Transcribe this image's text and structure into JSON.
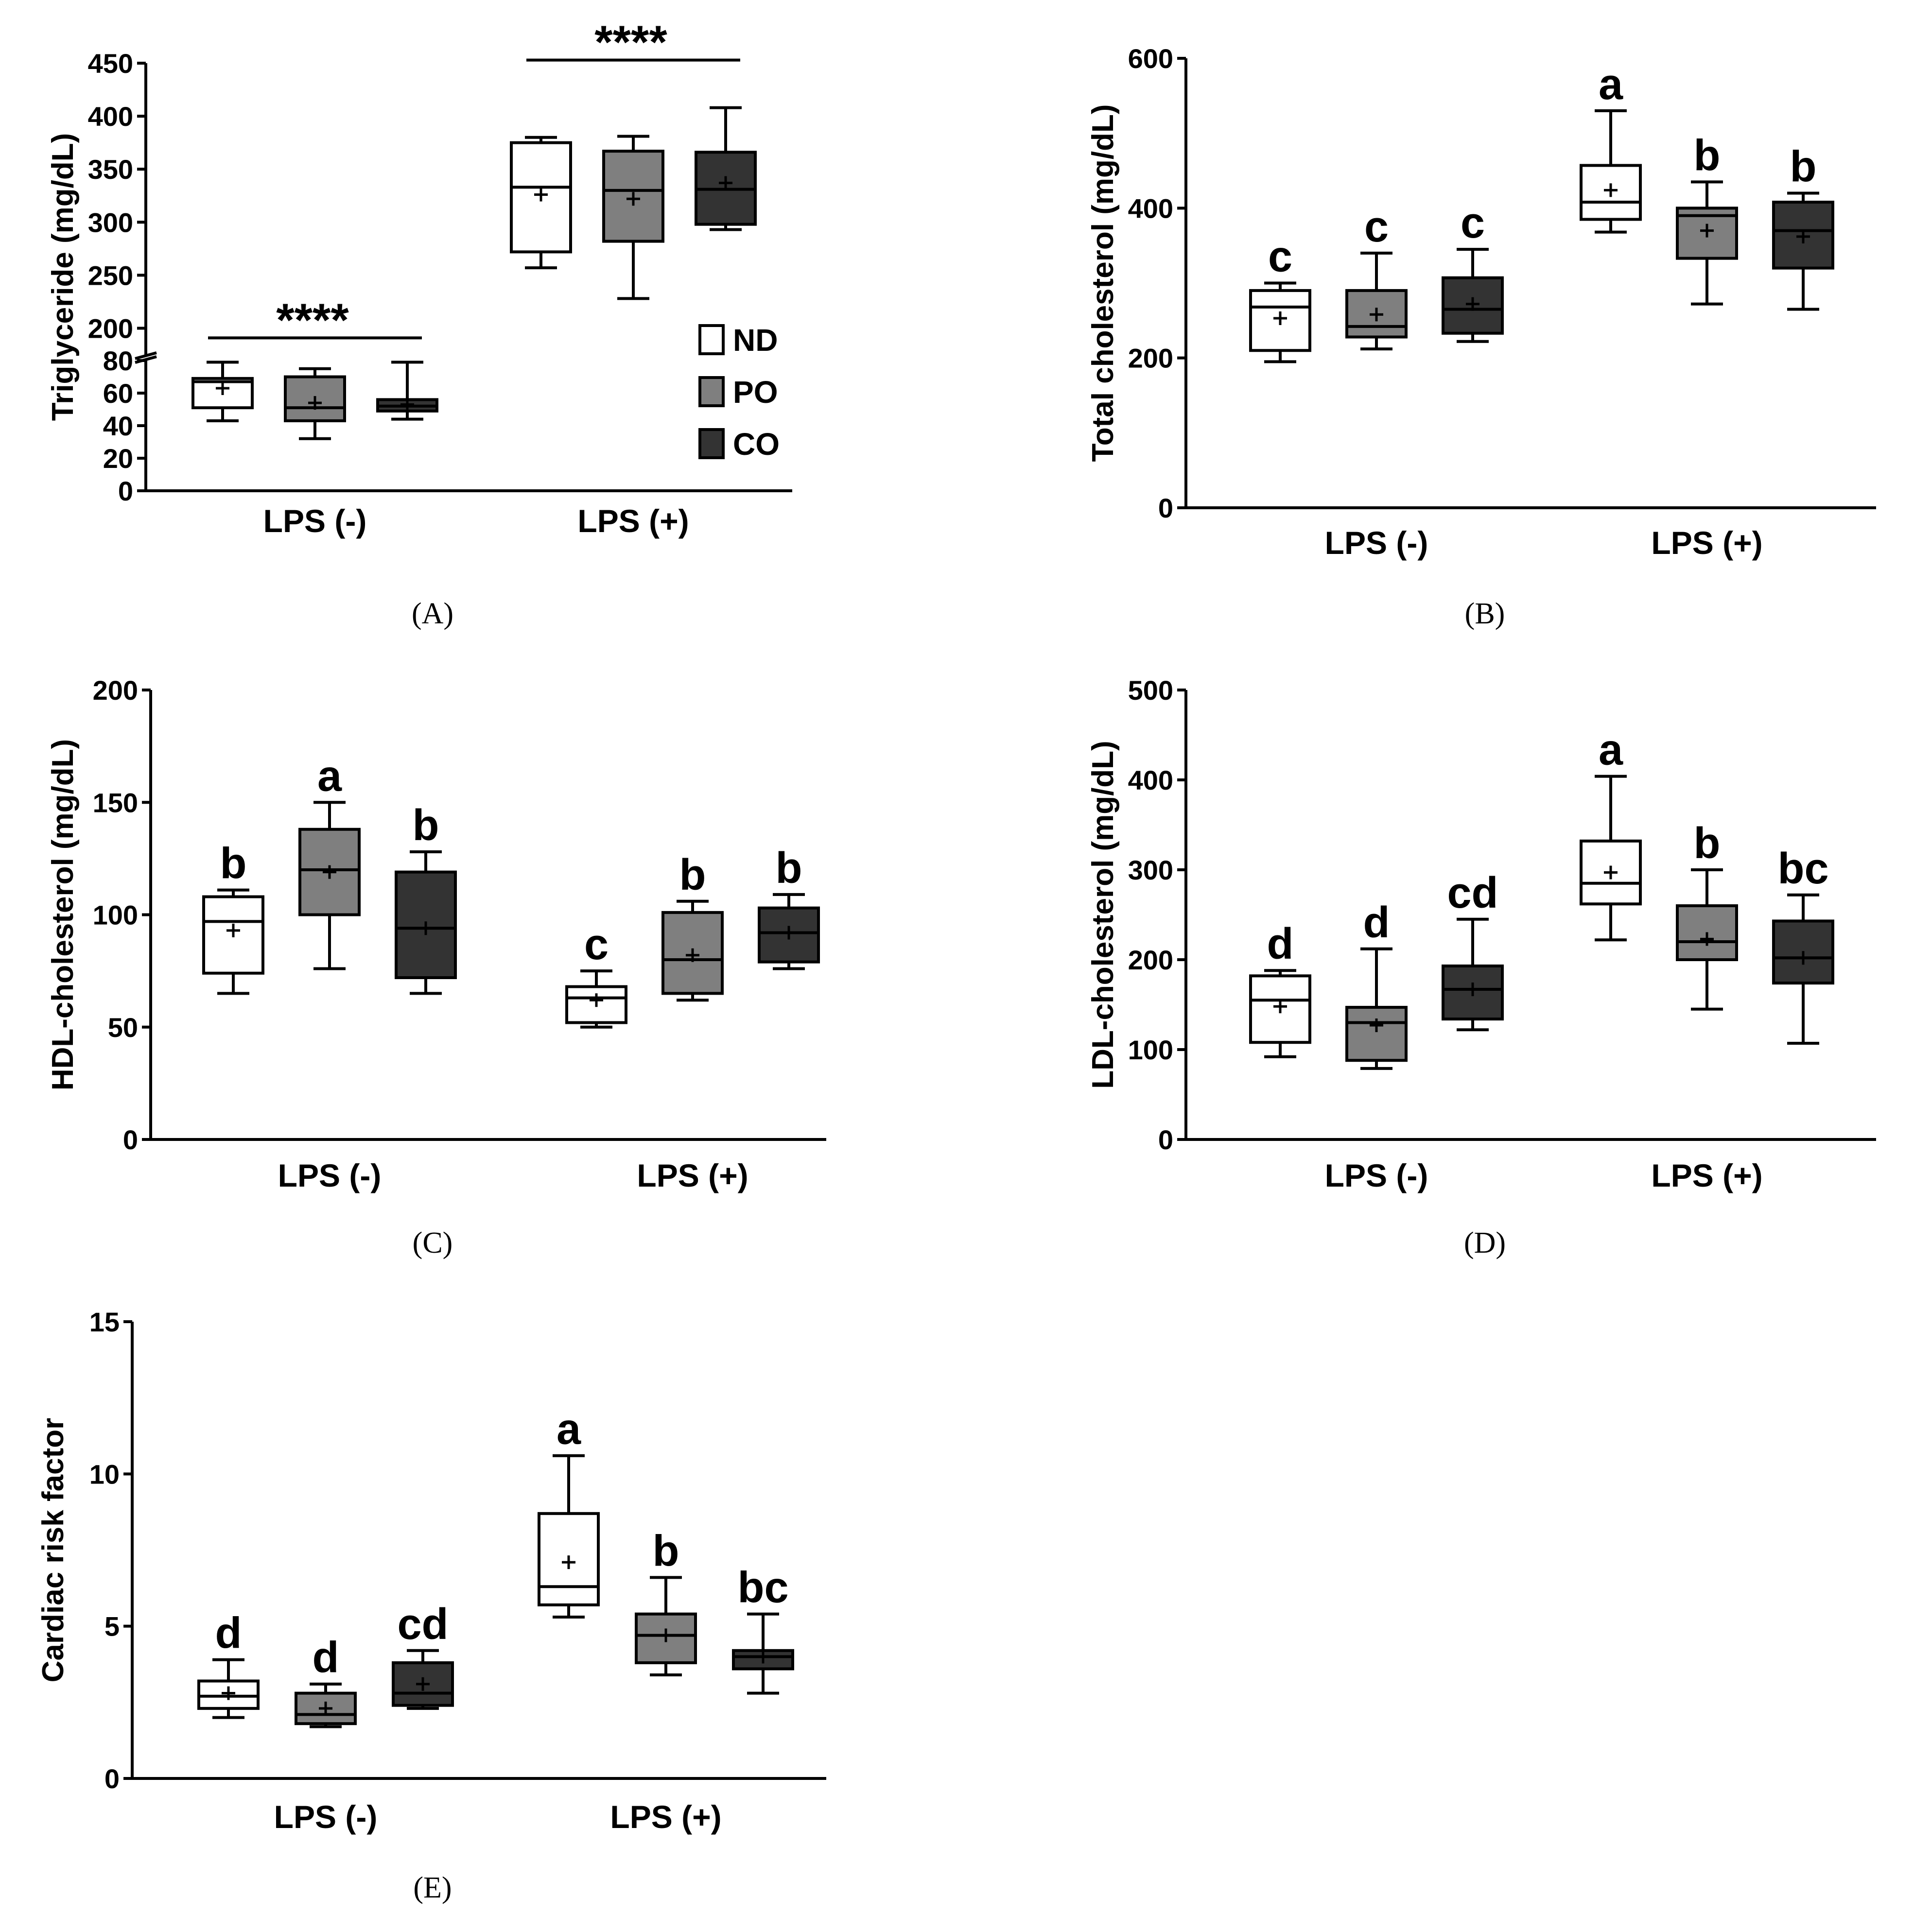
{
  "legend": {
    "entries": [
      {
        "label": "ND",
        "color": "#ffffff"
      },
      {
        "label": "PO",
        "color": "#7f7f7f"
      },
      {
        "label": "CO",
        "color": "#333333"
      }
    ]
  },
  "chart_data": [
    {
      "panel": "(A)",
      "type": "box",
      "ylabel": "Triglyceride (mg/dL)",
      "groups": [
        "LPS (-)",
        "LPS (+)"
      ],
      "series": [
        "ND",
        "PO",
        "CO"
      ],
      "y_broken": true,
      "y_lower_range": [
        0,
        80
      ],
      "y_upper_range": [
        175,
        450
      ],
      "yticks_lower": [
        0,
        20,
        40,
        60,
        80
      ],
      "yticks_upper": [
        200,
        250,
        300,
        350,
        400,
        450
      ],
      "ytick_labels_lower": [
        "0",
        "20",
        "40",
        "60",
        "80"
      ],
      "ytick_labels_upper": [
        "200",
        "250",
        "300",
        "350",
        "400",
        "450"
      ],
      "show_legend": true,
      "significance_bars": [
        {
          "group": 0,
          "label": "****"
        },
        {
          "group": 1,
          "label": "****"
        }
      ],
      "boxes": [
        {
          "group": 0,
          "series": "ND",
          "min": 43,
          "q1": 51,
          "median": 67,
          "q3": 69,
          "max": 79,
          "mean": 63
        },
        {
          "group": 0,
          "series": "PO",
          "min": 32,
          "q1": 43,
          "median": 51,
          "q3": 70,
          "max": 75,
          "mean": 54
        },
        {
          "group": 0,
          "series": "CO",
          "min": 44,
          "q1": 49,
          "median": 52,
          "q3": 56,
          "max": 79,
          "mean": 53
        },
        {
          "group": 1,
          "series": "ND",
          "min": 257,
          "q1": 272,
          "median": 333,
          "q3": 375,
          "max": 380,
          "mean": 326
        },
        {
          "group": 1,
          "series": "PO",
          "min": 228,
          "q1": 282,
          "median": 330,
          "q3": 367,
          "max": 381,
          "mean": 322
        },
        {
          "group": 1,
          "series": "CO",
          "min": 293,
          "q1": 298,
          "median": 331,
          "q3": 366,
          "max": 408,
          "mean": 337
        }
      ]
    },
    {
      "panel": "(B)",
      "type": "box",
      "ylabel": "Total cholesterol (mg/dL)",
      "groups": [
        "LPS (-)",
        "LPS (+)"
      ],
      "series": [
        "ND",
        "PO",
        "CO"
      ],
      "ylim": [
        0,
        600
      ],
      "yticks": [
        0,
        200,
        400,
        600
      ],
      "ytick_labels": [
        "0",
        "200",
        "400",
        "600"
      ],
      "boxes": [
        {
          "group": 0,
          "series": "ND",
          "min": 195,
          "q1": 210,
          "median": 268,
          "q3": 290,
          "max": 300,
          "mean": 253,
          "letter": "c"
        },
        {
          "group": 0,
          "series": "PO",
          "min": 212,
          "q1": 228,
          "median": 242,
          "q3": 290,
          "max": 340,
          "mean": 258,
          "letter": "c"
        },
        {
          "group": 0,
          "series": "CO",
          "min": 222,
          "q1": 233,
          "median": 265,
          "q3": 307,
          "max": 345,
          "mean": 272,
          "letter": "c"
        },
        {
          "group": 1,
          "series": "ND",
          "min": 368,
          "q1": 385,
          "median": 408,
          "q3": 457,
          "max": 530,
          "mean": 424,
          "letter": "a"
        },
        {
          "group": 1,
          "series": "PO",
          "min": 272,
          "q1": 333,
          "median": 390,
          "q3": 400,
          "max": 435,
          "mean": 370,
          "letter": "b"
        },
        {
          "group": 1,
          "series": "CO",
          "min": 265,
          "q1": 320,
          "median": 370,
          "q3": 408,
          "max": 420,
          "mean": 362,
          "letter": "b"
        }
      ]
    },
    {
      "panel": "(C)",
      "type": "box",
      "ylabel": "HDL-cholesterol (mg/dL)",
      "groups": [
        "LPS (-)",
        "LPS (+)"
      ],
      "series": [
        "ND",
        "PO",
        "CO"
      ],
      "ylim": [
        0,
        200
      ],
      "yticks": [
        0,
        50,
        100,
        150,
        200
      ],
      "ytick_labels": [
        "0",
        "50",
        "100",
        "150",
        "200"
      ],
      "boxes": [
        {
          "group": 0,
          "series": "ND",
          "min": 65,
          "q1": 74,
          "median": 97,
          "q3": 108,
          "max": 111,
          "mean": 93,
          "letter": "b"
        },
        {
          "group": 0,
          "series": "PO",
          "min": 76,
          "q1": 100,
          "median": 120,
          "q3": 138,
          "max": 150,
          "mean": 119,
          "letter": "a"
        },
        {
          "group": 0,
          "series": "CO",
          "min": 65,
          "q1": 72,
          "median": 94,
          "q3": 119,
          "max": 128,
          "mean": 94,
          "letter": "b"
        },
        {
          "group": 1,
          "series": "ND",
          "min": 50,
          "q1": 52,
          "median": 63,
          "q3": 68,
          "max": 75,
          "mean": 62,
          "letter": "c"
        },
        {
          "group": 1,
          "series": "PO",
          "min": 62,
          "q1": 65,
          "median": 80,
          "q3": 101,
          "max": 106,
          "mean": 82,
          "letter": "b"
        },
        {
          "group": 1,
          "series": "CO",
          "min": 76,
          "q1": 79,
          "median": 92,
          "q3": 103,
          "max": 109,
          "mean": 92,
          "letter": "b"
        }
      ]
    },
    {
      "panel": "(D)",
      "type": "box",
      "ylabel": "LDL-cholesterol (mg/dL)",
      "groups": [
        "LPS (-)",
        "LPS (+)"
      ],
      "series": [
        "ND",
        "PO",
        "CO"
      ],
      "ylim": [
        0,
        500
      ],
      "yticks": [
        0,
        100,
        200,
        300,
        400,
        500
      ],
      "ytick_labels": [
        "0",
        "100",
        "200",
        "300",
        "400",
        "500"
      ],
      "boxes": [
        {
          "group": 0,
          "series": "ND",
          "min": 92,
          "q1": 108,
          "median": 155,
          "q3": 182,
          "max": 188,
          "mean": 148,
          "letter": "d"
        },
        {
          "group": 0,
          "series": "PO",
          "min": 79,
          "q1": 88,
          "median": 130,
          "q3": 147,
          "max": 212,
          "mean": 127,
          "letter": "d"
        },
        {
          "group": 0,
          "series": "CO",
          "min": 122,
          "q1": 134,
          "median": 167,
          "q3": 193,
          "max": 245,
          "mean": 167,
          "letter": "cd"
        },
        {
          "group": 1,
          "series": "ND",
          "min": 222,
          "q1": 262,
          "median": 285,
          "q3": 332,
          "max": 404,
          "mean": 297,
          "letter": "a"
        },
        {
          "group": 1,
          "series": "PO",
          "min": 145,
          "q1": 200,
          "median": 220,
          "q3": 260,
          "max": 300,
          "mean": 223,
          "letter": "b"
        },
        {
          "group": 1,
          "series": "CO",
          "min": 107,
          "q1": 174,
          "median": 202,
          "q3": 243,
          "max": 272,
          "mean": 202,
          "letter": "bc"
        }
      ]
    },
    {
      "panel": "(E)",
      "type": "box",
      "ylabel": "Cardiac risk factor",
      "groups": [
        "LPS (-)",
        "LPS (+)"
      ],
      "series": [
        "ND",
        "PO",
        "CO"
      ],
      "ylim": [
        0,
        15
      ],
      "yticks": [
        0,
        5,
        10,
        15
      ],
      "ytick_labels": [
        "0",
        "5",
        "10",
        "15"
      ],
      "boxes": [
        {
          "group": 0,
          "series": "ND",
          "min": 2.0,
          "q1": 2.3,
          "median": 2.7,
          "q3": 3.2,
          "max": 3.9,
          "mean": 2.8,
          "letter": "d"
        },
        {
          "group": 0,
          "series": "PO",
          "min": 1.7,
          "q1": 1.8,
          "median": 2.1,
          "q3": 2.8,
          "max": 3.1,
          "mean": 2.3,
          "letter": "d"
        },
        {
          "group": 0,
          "series": "CO",
          "min": 2.3,
          "q1": 2.4,
          "median": 2.8,
          "q3": 3.8,
          "max": 4.2,
          "mean": 3.1,
          "letter": "cd"
        },
        {
          "group": 1,
          "series": "ND",
          "min": 5.3,
          "q1": 5.7,
          "median": 6.3,
          "q3": 8.7,
          "max": 10.6,
          "mean": 7.1,
          "letter": "a"
        },
        {
          "group": 1,
          "series": "PO",
          "min": 3.4,
          "q1": 3.8,
          "median": 4.7,
          "q3": 5.4,
          "max": 6.6,
          "mean": 4.7,
          "letter": "b"
        },
        {
          "group": 1,
          "series": "CO",
          "min": 2.8,
          "q1": 3.6,
          "median": 4.0,
          "q3": 4.2,
          "max": 5.4,
          "mean": 4.0,
          "letter": "bc"
        }
      ]
    }
  ]
}
